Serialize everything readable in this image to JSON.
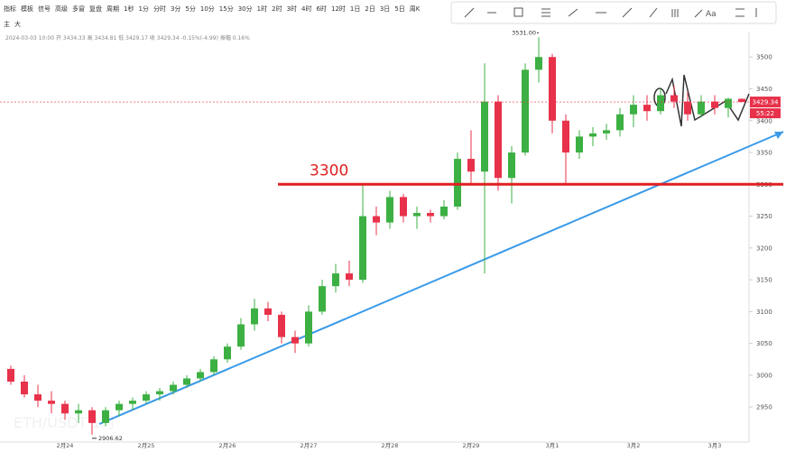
{
  "toolbar": {
    "items": [
      "指标",
      "模板",
      "信号",
      "高级",
      "多窗",
      "复盘",
      "周期"
    ],
    "periods": [
      "1秒",
      "1分",
      "分时",
      "3分",
      "5分",
      "10分",
      "15分",
      "30分",
      "1时",
      "2时",
      "3时",
      "4时",
      "6时",
      "12时",
      "1日",
      "2日",
      "3日",
      "5日",
      "周K"
    ],
    "tools": [
      "主",
      "大",
      "Aa"
    ]
  },
  "info": "2024-03-03 10:00 开 3434.33 高 3434.81 低 3429.17 收 3429.34 -0.15%(-4.99) 振幅 0.16%",
  "chart_data": {
    "type": "candlestick",
    "up_color": "#3cb043",
    "down_color": "#e8314a",
    "categories": [
      null,
      null,
      null,
      null,
      "2月24",
      null,
      null,
      null,
      null,
      null,
      "2月25",
      null,
      null,
      null,
      null,
      null,
      "2月26",
      null,
      null,
      null,
      null,
      null,
      "2月27",
      null,
      null,
      null,
      null,
      null,
      "2月28",
      null,
      null,
      null,
      null,
      null,
      "2月29",
      null,
      null,
      null,
      null,
      null,
      "3月1",
      null,
      null,
      null,
      null,
      null,
      "3月2",
      null,
      null,
      null,
      null,
      null,
      "3月3",
      null,
      null
    ],
    "open": [
      3010,
      2990,
      2970,
      2960,
      2955,
      2940,
      2945,
      2925,
      2945,
      2955,
      2960,
      2970,
      2975,
      2985,
      2995,
      3005,
      3025,
      3045,
      3080,
      3105,
      3095,
      3060,
      3050,
      3100,
      3140,
      3160,
      3150,
      3250,
      3240,
      3280,
      3250,
      3255,
      3250,
      3265,
      3340,
      3320,
      3430,
      3310,
      3350,
      3480,
      3500,
      3400,
      3350,
      3375,
      3380,
      3385,
      3410,
      3425,
      3415,
      3440,
      3430,
      3410,
      3430,
      3420,
      3434.33
    ],
    "high": [
      3015,
      3000,
      2985,
      2975,
      2960,
      2955,
      2950,
      2950,
      2960,
      2965,
      2975,
      2980,
      2990,
      3000,
      3010,
      3030,
      3050,
      3090,
      3120,
      3115,
      3100,
      3070,
      3110,
      3150,
      3175,
      3180,
      3300,
      3265,
      3290,
      3285,
      3265,
      3260,
      3275,
      3350,
      3385,
      3490,
      3440,
      3360,
      3490,
      3531,
      3505,
      3410,
      3385,
      3390,
      3395,
      3420,
      3440,
      3440,
      3450,
      3455,
      3445,
      3440,
      3440,
      3436,
      3434.81
    ],
    "low": [
      2985,
      2965,
      2950,
      2940,
      2930,
      2925,
      2906.62,
      2920,
      2935,
      2945,
      2955,
      2960,
      2970,
      2980,
      2990,
      3000,
      3020,
      3040,
      3070,
      3085,
      3050,
      3035,
      3045,
      3095,
      3130,
      3140,
      3145,
      3220,
      3230,
      3240,
      3230,
      3240,
      3245,
      3260,
      3300,
      3160,
      3290,
      3270,
      3345,
      3460,
      3380,
      3300,
      3340,
      3360,
      3370,
      3375,
      3390,
      3400,
      3410,
      3420,
      3400,
      3405,
      3410,
      3405,
      3429.17
    ],
    "close": [
      2990,
      2970,
      2960,
      2955,
      2940,
      2945,
      2925,
      2945,
      2955,
      2960,
      2970,
      2975,
      2985,
      2995,
      3005,
      3025,
      3045,
      3080,
      3105,
      3095,
      3060,
      3050,
      3100,
      3140,
      3160,
      3150,
      3250,
      3240,
      3280,
      3250,
      3255,
      3250,
      3265,
      3340,
      3320,
      3430,
      3310,
      3350,
      3480,
      3500,
      3400,
      3350,
      3375,
      3380,
      3385,
      3410,
      3425,
      3415,
      3440,
      3430,
      3410,
      3430,
      3420,
      3434.33,
      3429.34
    ],
    "ylim": [
      2895,
      3540
    ],
    "yticks": [
      2950,
      3000,
      3050,
      3100,
      3150,
      3200,
      3250,
      3300,
      3350,
      3400,
      3450,
      3500
    ],
    "grid": false,
    "hline": {
      "value": 3300,
      "label": "3300",
      "color": "#e02020"
    },
    "max_label": "3531.00",
    "countdown": "55:22",
    "watermark": "ETH/USDT 1时"
  }
}
